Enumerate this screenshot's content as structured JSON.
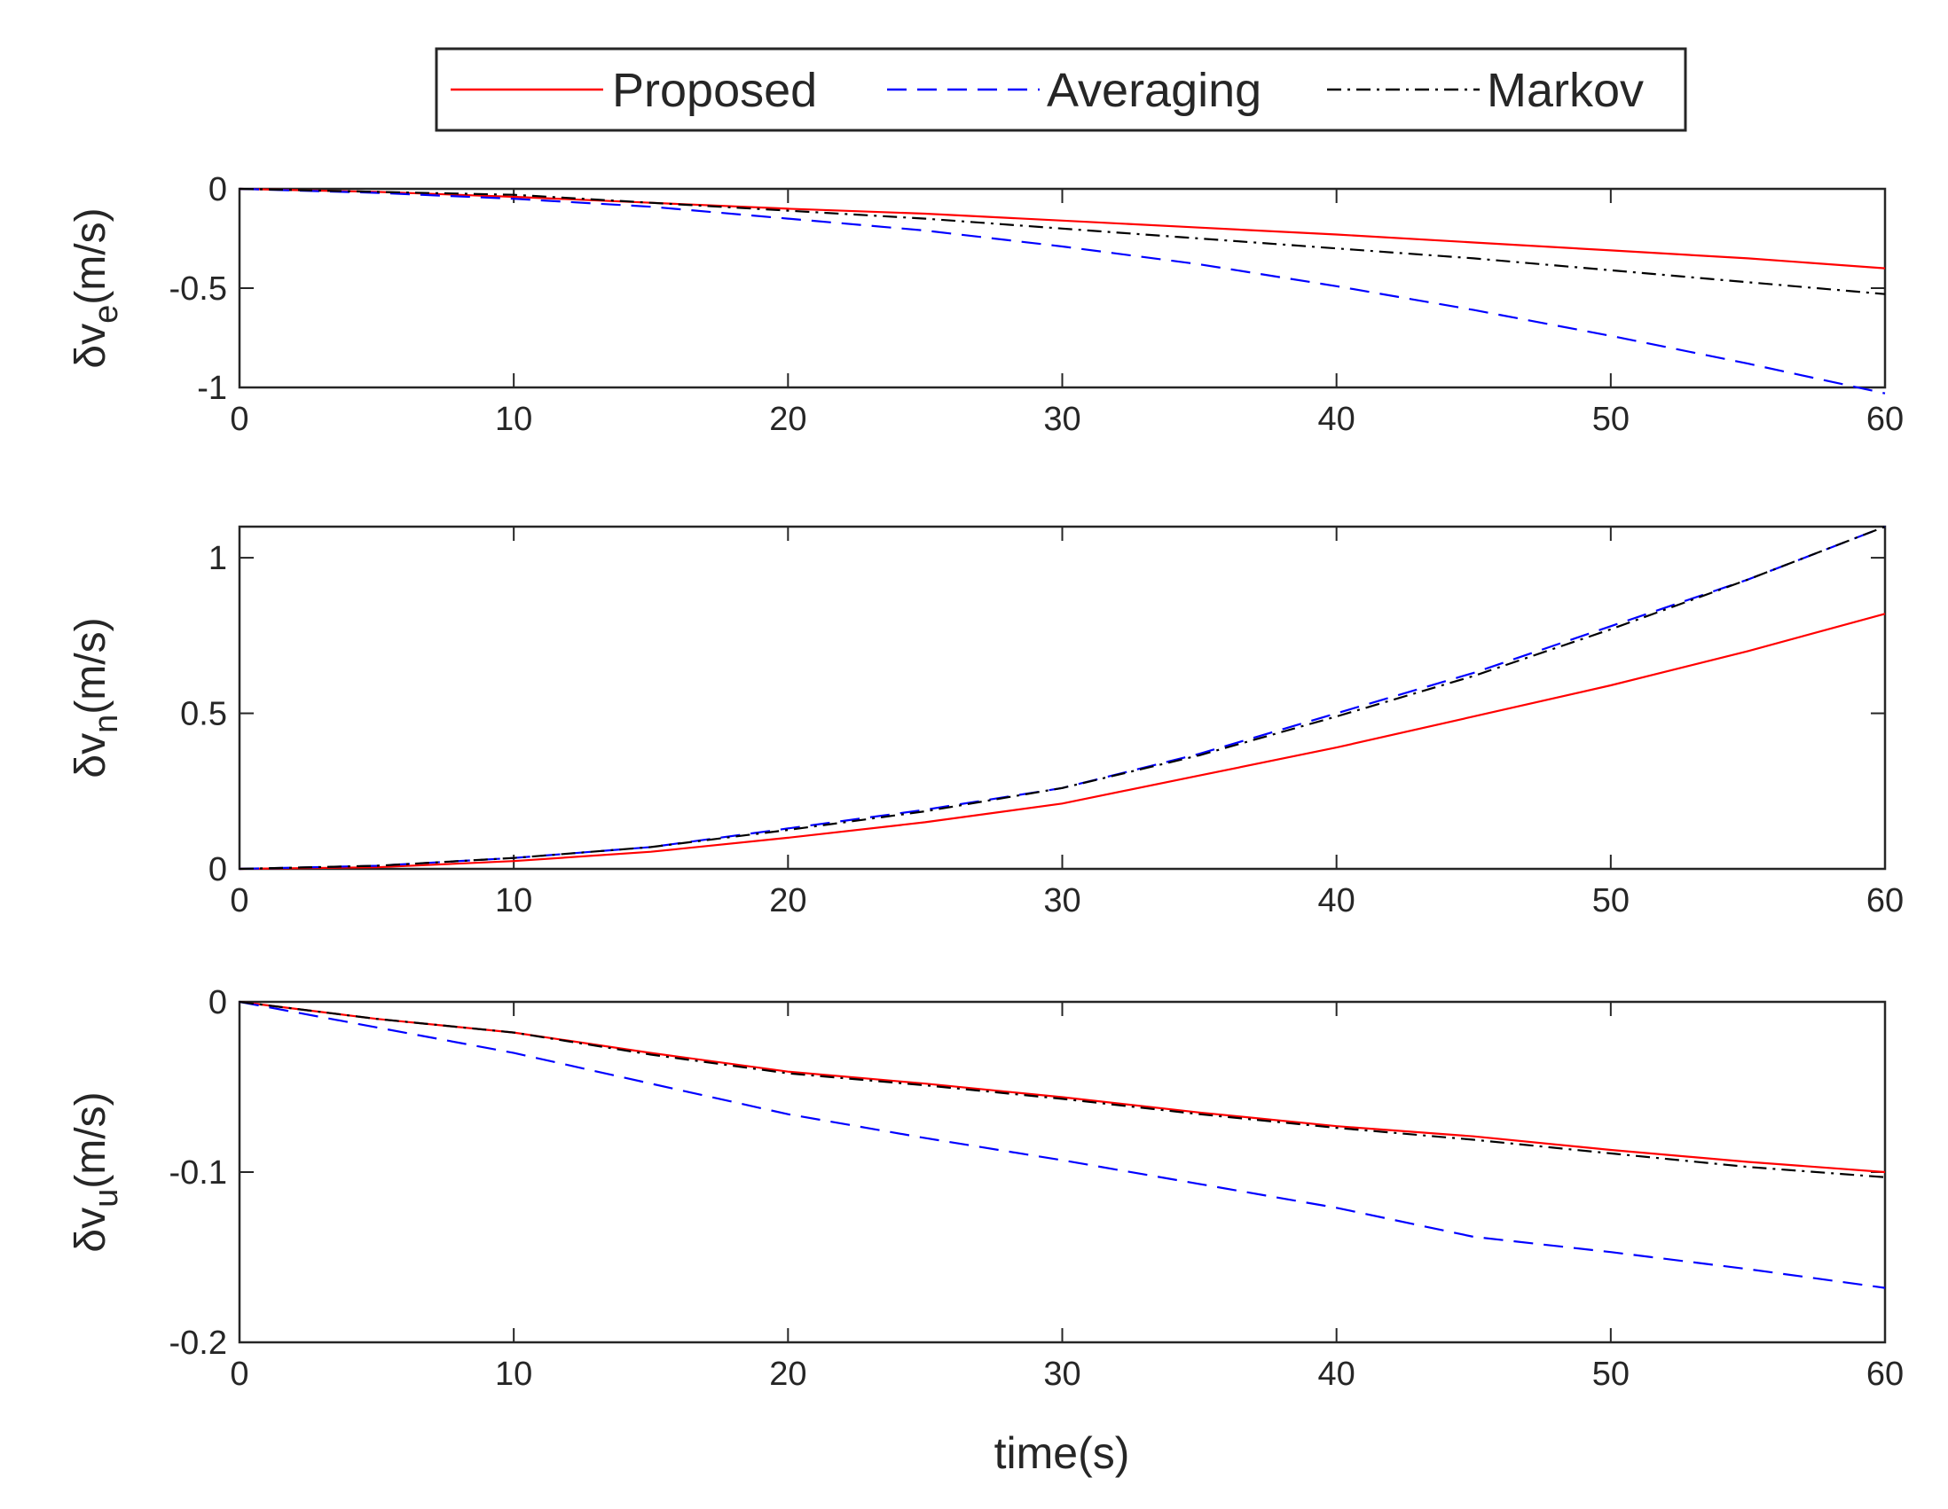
{
  "chart_data": [
    {
      "type": "line",
      "ylabel_main": "δv",
      "ylabel_sub": "e",
      "ylabel_unit": "(m/s)",
      "xlim": [
        0,
        60
      ],
      "ylim": [
        -1.0,
        0
      ],
      "xticks": [
        "0",
        "10",
        "20",
        "30",
        "40",
        "50",
        "60"
      ],
      "yticks": [
        {
          "v": 0,
          "t": "0"
        },
        {
          "v": -0.5,
          "t": "-0.5"
        },
        {
          "v": -1.0,
          "t": "-1"
        }
      ],
      "x": [
        0,
        5,
        10,
        15,
        20,
        25,
        30,
        35,
        40,
        45,
        50,
        55,
        60
      ],
      "series": [
        {
          "name": "Proposed",
          "values": [
            0,
            -0.015,
            -0.04,
            -0.07,
            -0.1,
            -0.125,
            -0.16,
            -0.195,
            -0.23,
            -0.27,
            -0.31,
            -0.35,
            -0.4
          ]
        },
        {
          "name": "Averaging",
          "values": [
            0,
            -0.02,
            -0.05,
            -0.09,
            -0.15,
            -0.21,
            -0.29,
            -0.38,
            -0.49,
            -0.61,
            -0.74,
            -0.88,
            -1.03
          ]
        },
        {
          "name": "Markov",
          "values": [
            0,
            -0.015,
            -0.03,
            -0.07,
            -0.11,
            -0.15,
            -0.2,
            -0.25,
            -0.3,
            -0.35,
            -0.41,
            -0.47,
            -0.53
          ]
        }
      ]
    },
    {
      "type": "line",
      "ylabel_main": "δv",
      "ylabel_sub": "n",
      "ylabel_unit": "(m/s)",
      "xlim": [
        0,
        60
      ],
      "ylim": [
        0,
        1.1
      ],
      "xticks": [
        "0",
        "10",
        "20",
        "30",
        "40",
        "50",
        "60"
      ],
      "yticks": [
        {
          "v": 0,
          "t": "0"
        },
        {
          "v": 0.5,
          "t": "0.5"
        },
        {
          "v": 1.0,
          "t": "1"
        }
      ],
      "x": [
        0,
        5,
        10,
        15,
        20,
        25,
        30,
        35,
        40,
        45,
        50,
        55,
        60
      ],
      "series": [
        {
          "name": "Proposed",
          "values": [
            0,
            0.005,
            0.025,
            0.055,
            0.1,
            0.15,
            0.21,
            0.3,
            0.39,
            0.49,
            0.59,
            0.7,
            0.82
          ]
        },
        {
          "name": "Averaging",
          "values": [
            0,
            0.01,
            0.035,
            0.07,
            0.13,
            0.19,
            0.26,
            0.37,
            0.5,
            0.63,
            0.78,
            0.93,
            1.1
          ]
        },
        {
          "name": "Markov",
          "values": [
            0,
            0.01,
            0.035,
            0.07,
            0.125,
            0.185,
            0.26,
            0.365,
            0.49,
            0.62,
            0.77,
            0.93,
            1.1
          ]
        }
      ]
    },
    {
      "type": "line",
      "ylabel_main": "δv",
      "ylabel_sub": "u",
      "ylabel_unit": "(m/s)",
      "xlabel": "time(s)",
      "xlim": [
        0,
        60
      ],
      "ylim": [
        -0.2,
        0
      ],
      "xticks": [
        "0",
        "10",
        "20",
        "30",
        "40",
        "50",
        "60"
      ],
      "yticks": [
        {
          "v": 0,
          "t": "0"
        },
        {
          "v": -0.1,
          "t": "-0.1"
        },
        {
          "v": -0.2,
          "t": "-0.2"
        }
      ],
      "x": [
        0,
        5,
        10,
        15,
        20,
        25,
        30,
        35,
        40,
        45,
        50,
        55,
        60
      ],
      "series": [
        {
          "name": "Proposed",
          "values": [
            0,
            -0.01,
            -0.018,
            -0.03,
            -0.041,
            -0.048,
            -0.056,
            -0.065,
            -0.073,
            -0.079,
            -0.087,
            -0.094,
            -0.1
          ]
        },
        {
          "name": "Averaging",
          "values": [
            0,
            -0.015,
            -0.03,
            -0.048,
            -0.066,
            -0.08,
            -0.093,
            -0.107,
            -0.121,
            -0.138,
            -0.147,
            -0.157,
            -0.168
          ]
        },
        {
          "name": "Markov",
          "values": [
            0,
            -0.01,
            -0.018,
            -0.031,
            -0.042,
            -0.049,
            -0.057,
            -0.066,
            -0.074,
            -0.081,
            -0.089,
            -0.097,
            -0.103
          ]
        }
      ]
    }
  ],
  "legend": {
    "items": [
      {
        "label": "Proposed",
        "color": "#ff0000",
        "dash": "solid"
      },
      {
        "label": "Averaging",
        "color": "#0000ff",
        "dash": "dashed"
      },
      {
        "label": "Markov",
        "color": "#000000",
        "dash": "dashdot"
      }
    ]
  }
}
